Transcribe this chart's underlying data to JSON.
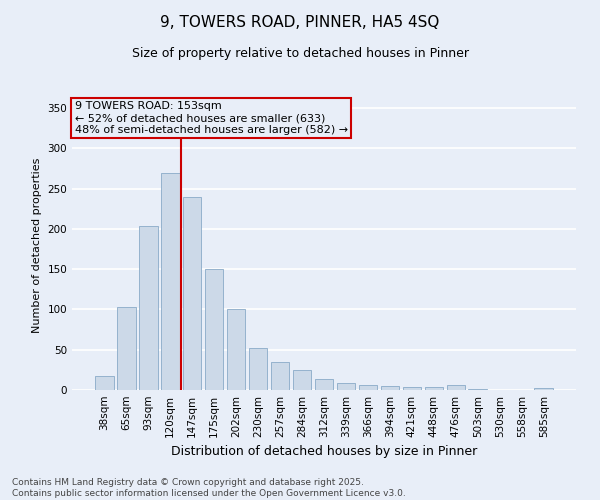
{
  "title1": "9, TOWERS ROAD, PINNER, HA5 4SQ",
  "title2": "Size of property relative to detached houses in Pinner",
  "xlabel": "Distribution of detached houses by size in Pinner",
  "ylabel": "Number of detached properties",
  "categories": [
    "38sqm",
    "65sqm",
    "93sqm",
    "120sqm",
    "147sqm",
    "175sqm",
    "202sqm",
    "230sqm",
    "257sqm",
    "284sqm",
    "312sqm",
    "339sqm",
    "366sqm",
    "394sqm",
    "421sqm",
    "448sqm",
    "476sqm",
    "503sqm",
    "530sqm",
    "558sqm",
    "585sqm"
  ],
  "values": [
    18,
    103,
    203,
    270,
    240,
    150,
    100,
    52,
    35,
    25,
    14,
    9,
    6,
    5,
    4,
    4,
    6,
    1,
    0,
    0,
    2
  ],
  "bar_color": "#ccd9e8",
  "bar_edge_color": "#8aaac8",
  "background_color": "#e8eef8",
  "grid_color": "#ffffff",
  "vline_x": 3.5,
  "vline_color": "#cc0000",
  "annotation_box_text": "9 TOWERS ROAD: 153sqm\n← 52% of detached houses are smaller (633)\n48% of semi-detached houses are larger (582) →",
  "annotation_box_color": "#cc0000",
  "footer_text": "Contains HM Land Registry data © Crown copyright and database right 2025.\nContains public sector information licensed under the Open Government Licence v3.0.",
  "ylim": [
    0,
    360
  ],
  "yticks": [
    0,
    50,
    100,
    150,
    200,
    250,
    300,
    350
  ],
  "title1_fontsize": 11,
  "title2_fontsize": 9,
  "ylabel_fontsize": 8,
  "xlabel_fontsize": 9,
  "tick_fontsize": 7.5,
  "footer_fontsize": 6.5,
  "ann_fontsize": 8
}
